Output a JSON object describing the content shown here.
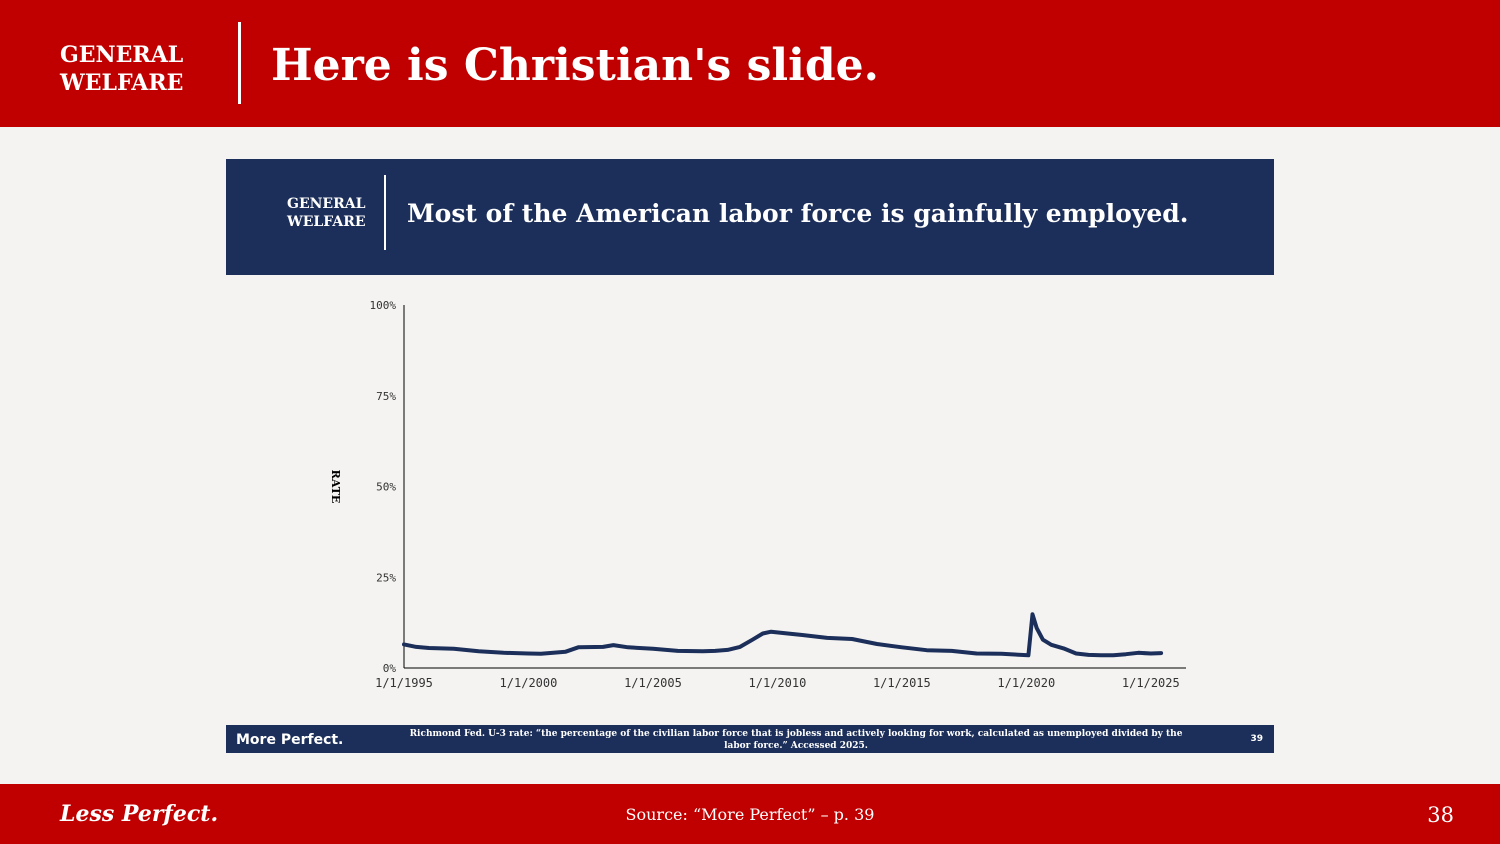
{
  "header": {
    "section_label_line1": "GENERAL",
    "section_label_line2": "WELFARE",
    "title": "Here is Christian's slide.",
    "background_color": "#c00000"
  },
  "inner_slide": {
    "section_label_line1": "GENERAL",
    "section_label_line2": "WELFARE",
    "title": "Most of the American labor force is gainfully employed.",
    "background_color": "#1c2f5a"
  },
  "chart_data": {
    "type": "line",
    "title": "",
    "xlabel": "",
    "ylabel": "RATE",
    "x_tick_labels": [
      "1/1/1995",
      "1/1/2000",
      "1/1/2005",
      "1/1/2010",
      "1/1/2015",
      "1/1/2020",
      "1/1/2025"
    ],
    "y_tick_labels": [
      "0%",
      "25%",
      "50%",
      "75%",
      "100%"
    ],
    "y_ticks": [
      0,
      25,
      50,
      75,
      100
    ],
    "xlim": [
      "1995-01-01",
      "2026-06-01"
    ],
    "ylim": [
      0,
      100
    ],
    "grid": false,
    "legend": false,
    "line_color": "#1c2f5a",
    "series": [
      {
        "x": [
          "1995-01-01",
          "1995-07-01",
          "1996-01-01",
          "1997-01-01",
          "1998-01-01",
          "1999-01-01",
          "2000-01-01",
          "2000-07-01",
          "2001-01-01",
          "2001-07-01",
          "2002-01-01",
          "2003-01-01",
          "2003-06-01",
          "2004-01-01",
          "2005-01-01",
          "2006-01-01",
          "2007-01-01",
          "2007-07-01",
          "2008-01-01",
          "2008-07-01",
          "2009-01-01",
          "2009-06-01",
          "2009-10-01",
          "2010-06-01",
          "2011-01-01",
          "2012-01-01",
          "2013-01-01",
          "2014-01-01",
          "2015-01-01",
          "2016-01-01",
          "2017-01-01",
          "2018-01-01",
          "2019-01-01",
          "2020-02-01",
          "2020-04-01",
          "2020-06-01",
          "2020-09-01",
          "2021-01-01",
          "2021-07-01",
          "2022-01-01",
          "2022-07-01",
          "2023-01-01",
          "2023-07-01",
          "2024-01-01",
          "2024-07-01",
          "2025-01-01",
          "2025-06-01"
        ],
        "values": [
          6.5,
          5.8,
          5.5,
          5.3,
          4.6,
          4.2,
          4.0,
          3.9,
          4.2,
          4.5,
          5.7,
          5.8,
          6.3,
          5.7,
          5.3,
          4.7,
          4.6,
          4.7,
          5.0,
          5.8,
          7.8,
          9.5,
          10.0,
          9.5,
          9.1,
          8.3,
          8.0,
          6.6,
          5.7,
          4.9,
          4.7,
          4.0,
          3.9,
          3.5,
          14.8,
          11.0,
          7.8,
          6.4,
          5.4,
          4.0,
          3.6,
          3.5,
          3.5,
          3.8,
          4.2,
          4.0,
          4.1
        ]
      }
    ]
  },
  "footnote": {
    "logo": "More Perfect.",
    "text": "Richmond Fed. U-3 rate: “the percentage of the civilian labor force that is jobless and actively looking for work, calculated as unemployed divided by the labor force.” Accessed 2025.",
    "page": "39"
  },
  "footer": {
    "tagline": "Less Perfect.",
    "source": "Source: “More Perfect” – p. 39",
    "slide_number": "38"
  }
}
